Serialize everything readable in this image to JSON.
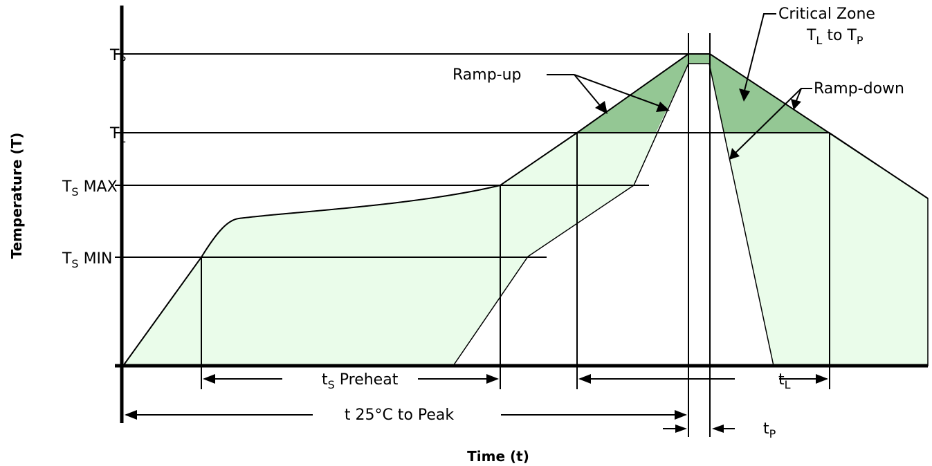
{
  "axes": {
    "y_title": "Temperature (T)",
    "x_title": "Time (t)"
  },
  "y_levels": [
    {
      "main": "T",
      "sub": "P",
      "suffix": ""
    },
    {
      "main": "T",
      "sub": "L",
      "suffix": ""
    },
    {
      "main": "T",
      "sub": "S",
      "suffix": " MAX"
    },
    {
      "main": "T",
      "sub": "S",
      "suffix": " MIN"
    }
  ],
  "annotations": {
    "critical_zone": {
      "line1": "Critical Zone",
      "line2_main": "T",
      "line2_sub1": "L",
      "line2_mid": " to T",
      "line2_sub2": "P"
    },
    "ramp_up": "Ramp-up",
    "ramp_down": "Ramp-down"
  },
  "intervals": {
    "preheat": {
      "main": "t",
      "sub": "S",
      "suffix": " Preheat"
    },
    "liquidus": {
      "main": "t",
      "sub": "L"
    },
    "to_peak": "t 25°C to Peak",
    "peak": {
      "main": "t",
      "sub": "P"
    }
  },
  "colors": {
    "process_window": "#eafcea",
    "critical_zone": "#94c794",
    "lines": "#000000"
  }
}
